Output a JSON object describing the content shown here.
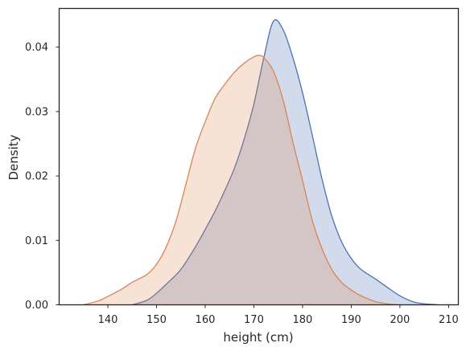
{
  "chart_data": {
    "type": "area",
    "title": "",
    "xlabel": "height (cm)",
    "ylabel": "Density",
    "xlim": [
      130,
      212
    ],
    "ylim": [
      0,
      0.046
    ],
    "xticks": [
      140,
      150,
      160,
      170,
      180,
      190,
      200,
      210
    ],
    "yticks": [
      0.0,
      0.01,
      0.02,
      0.03,
      0.04
    ],
    "ytick_labels": [
      "0.00",
      "0.01",
      "0.02",
      "0.03",
      "0.04"
    ],
    "grid": false,
    "legend": "none",
    "series": [
      {
        "color": "#4c72b0",
        "fill_color": "rgba(76,114,176,0.26)",
        "x": [
          145,
          148,
          150,
          152,
          155,
          158,
          160,
          162,
          164,
          166,
          168,
          170,
          172,
          174,
          176,
          178,
          180,
          182,
          184,
          186,
          188,
          190,
          192,
          195,
          198,
          200,
          203,
          206,
          208
        ],
        "y": [
          0.0,
          0.0007,
          0.0018,
          0.0032,
          0.0055,
          0.009,
          0.0117,
          0.0145,
          0.0177,
          0.0212,
          0.0257,
          0.0312,
          0.0382,
          0.044,
          0.0427,
          0.0384,
          0.0329,
          0.0263,
          0.0195,
          0.0138,
          0.0098,
          0.0072,
          0.0055,
          0.004,
          0.0024,
          0.0014,
          0.0004,
          0.0001,
          0.0
        ]
      },
      {
        "color": "#dd8452",
        "fill_color": "rgba(221,132,82,0.24)",
        "x": [
          135,
          138,
          140,
          143,
          145,
          148,
          150,
          152,
          154,
          156,
          158,
          160,
          162,
          164,
          166,
          168,
          170,
          171,
          172,
          174,
          176,
          178,
          180,
          182,
          184,
          186,
          188,
          190,
          192,
          195,
          198,
          200
        ],
        "y": [
          0.0,
          0.0006,
          0.0013,
          0.0025,
          0.0035,
          0.0047,
          0.0063,
          0.009,
          0.013,
          0.0186,
          0.0243,
          0.0284,
          0.032,
          0.0342,
          0.0361,
          0.0375,
          0.0385,
          0.0387,
          0.0384,
          0.0363,
          0.0318,
          0.0253,
          0.0193,
          0.0131,
          0.0087,
          0.0055,
          0.0035,
          0.0023,
          0.0014,
          0.0005,
          0.0001,
          0.0
        ]
      }
    ]
  }
}
